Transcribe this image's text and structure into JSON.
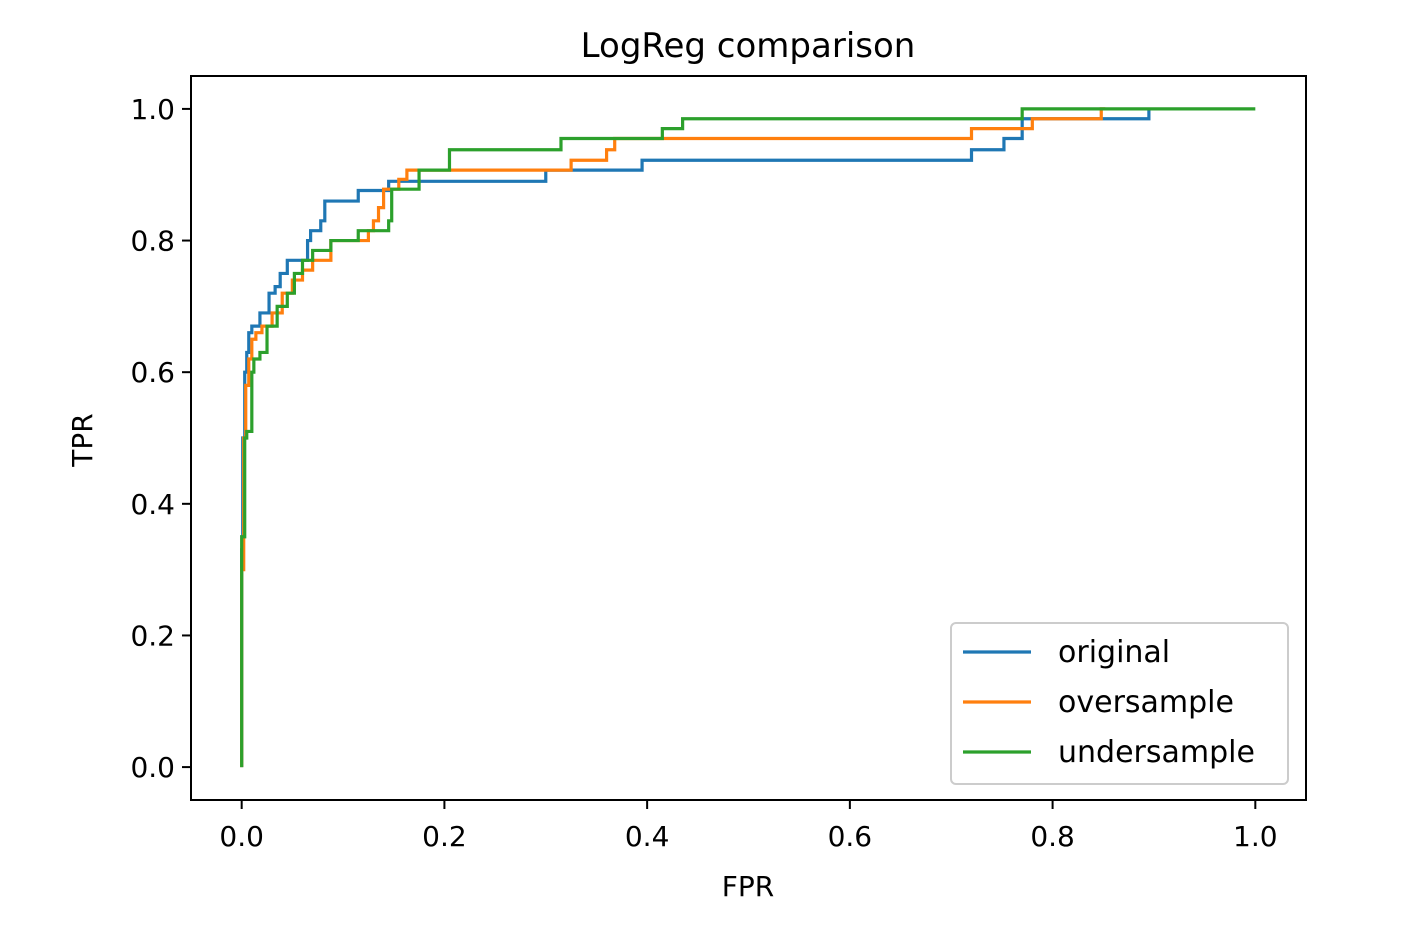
{
  "chart_data": {
    "type": "line",
    "title": "LogReg comparison",
    "xlabel": "FPR",
    "ylabel": "TPR",
    "xlim": [
      -0.05,
      1.05
    ],
    "ylim": [
      -0.05,
      1.05
    ],
    "xticks": [
      0.0,
      0.2,
      0.4,
      0.6,
      0.8,
      1.0
    ],
    "yticks": [
      0.0,
      0.2,
      0.4,
      0.6,
      0.8,
      1.0
    ],
    "xtick_labels": [
      "0.0",
      "0.2",
      "0.4",
      "0.6",
      "0.8",
      "1.0"
    ],
    "ytick_labels": [
      "0.0",
      "0.2",
      "0.4",
      "0.6",
      "0.8",
      "1.0"
    ],
    "grid": false,
    "legend_position": "lower-right",
    "series": [
      {
        "name": "original",
        "color": "#1f77b4",
        "x": [
          0.0,
          0.0,
          0.001,
          0.001,
          0.003,
          0.003,
          0.005,
          0.005,
          0.007,
          0.007,
          0.01,
          0.01,
          0.018,
          0.018,
          0.027,
          0.027,
          0.033,
          0.033,
          0.038,
          0.038,
          0.045,
          0.045,
          0.065,
          0.065,
          0.068,
          0.068,
          0.078,
          0.078,
          0.082,
          0.082,
          0.115,
          0.115,
          0.145,
          0.145,
          0.3,
          0.3,
          0.395,
          0.395,
          0.72,
          0.72,
          0.752,
          0.752,
          0.77,
          0.77,
          0.895,
          0.895
        ],
        "y": [
          0.0,
          0.33,
          0.33,
          0.5,
          0.5,
          0.6,
          0.6,
          0.63,
          0.63,
          0.66,
          0.66,
          0.67,
          0.67,
          0.69,
          0.69,
          0.72,
          0.72,
          0.73,
          0.73,
          0.75,
          0.75,
          0.77,
          0.77,
          0.8,
          0.8,
          0.815,
          0.815,
          0.83,
          0.83,
          0.86,
          0.86,
          0.876,
          0.876,
          0.89,
          0.89,
          0.907,
          0.907,
          0.922,
          0.922,
          0.938,
          0.938,
          0.955,
          0.955,
          0.985,
          0.985,
          1.0
        ]
      },
      {
        "name": "oversample",
        "color": "#ff7f0e",
        "x": [
          0.0,
          0.0,
          0.002,
          0.002,
          0.004,
          0.004,
          0.007,
          0.007,
          0.01,
          0.01,
          0.014,
          0.014,
          0.02,
          0.02,
          0.03,
          0.03,
          0.04,
          0.04,
          0.05,
          0.05,
          0.06,
          0.06,
          0.07,
          0.07,
          0.088,
          0.088,
          0.125,
          0.125,
          0.13,
          0.13,
          0.135,
          0.135,
          0.14,
          0.14,
          0.155,
          0.155,
          0.163,
          0.163,
          0.2,
          0.2,
          0.325,
          0.325,
          0.36,
          0.36,
          0.368,
          0.368,
          0.72,
          0.72,
          0.78,
          0.78,
          0.848,
          0.848,
          0.852
        ],
        "y": [
          0.0,
          0.3,
          0.3,
          0.5,
          0.5,
          0.58,
          0.58,
          0.62,
          0.62,
          0.65,
          0.65,
          0.66,
          0.66,
          0.67,
          0.67,
          0.69,
          0.69,
          0.72,
          0.72,
          0.74,
          0.74,
          0.755,
          0.755,
          0.77,
          0.77,
          0.8,
          0.8,
          0.815,
          0.815,
          0.83,
          0.83,
          0.85,
          0.85,
          0.878,
          0.878,
          0.893,
          0.893,
          0.907,
          0.907,
          0.907,
          0.907,
          0.922,
          0.922,
          0.938,
          0.938,
          0.955,
          0.955,
          0.97,
          0.97,
          0.985,
          0.985,
          1.0,
          1.0
        ]
      },
      {
        "name": "undersample",
        "color": "#2ca02c",
        "x": [
          0.0,
          0.0,
          0.003,
          0.003,
          0.005,
          0.005,
          0.01,
          0.01,
          0.012,
          0.012,
          0.018,
          0.018,
          0.025,
          0.025,
          0.035,
          0.035,
          0.045,
          0.045,
          0.052,
          0.052,
          0.06,
          0.06,
          0.07,
          0.07,
          0.088,
          0.088,
          0.115,
          0.115,
          0.145,
          0.145,
          0.148,
          0.148,
          0.175,
          0.175,
          0.205,
          0.205,
          0.315,
          0.315,
          0.415,
          0.415,
          0.435,
          0.435,
          0.77,
          0.77,
          1.0
        ],
        "y": [
          0.0,
          0.35,
          0.35,
          0.5,
          0.5,
          0.51,
          0.51,
          0.6,
          0.6,
          0.62,
          0.62,
          0.63,
          0.63,
          0.67,
          0.67,
          0.7,
          0.7,
          0.72,
          0.72,
          0.75,
          0.75,
          0.77,
          0.77,
          0.785,
          0.785,
          0.8,
          0.8,
          0.815,
          0.815,
          0.83,
          0.83,
          0.878,
          0.878,
          0.907,
          0.907,
          0.938,
          0.938,
          0.955,
          0.955,
          0.97,
          0.97,
          0.985,
          0.985,
          1.0,
          1.0
        ]
      }
    ]
  }
}
